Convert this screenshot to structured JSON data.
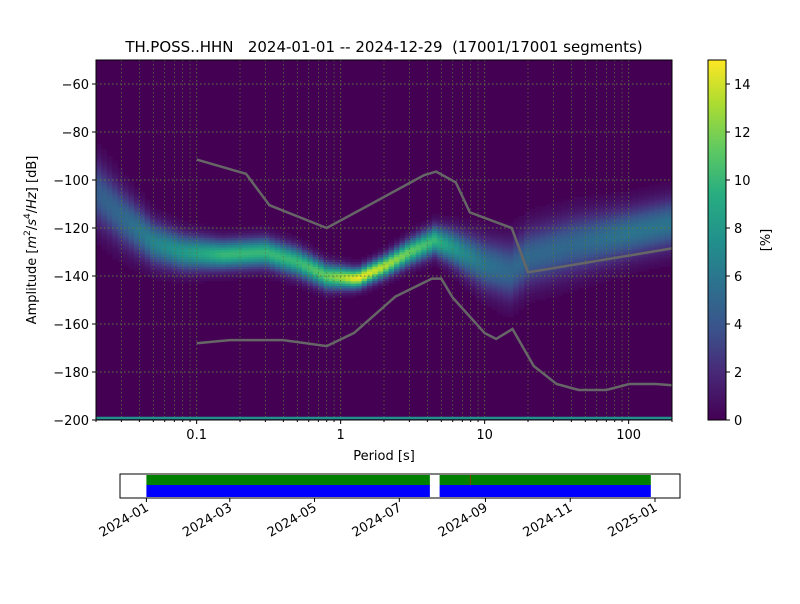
{
  "chart_data": {
    "type": "heatmap",
    "title": "TH.POSS..HHN   2024-01-01 -- 2024-12-29  (17001/17001 segments)",
    "xlabel": "Period [s]",
    "ylabel_parts": [
      "Amplitude [",
      "m",
      "2",
      "/",
      "s",
      "4",
      "/",
      "Hz",
      "] [dB]"
    ],
    "x_scale": "log",
    "xlim": [
      0.02,
      200
    ],
    "ylim": [
      -200,
      -50
    ],
    "x_ticks": [
      {
        "value": 0.1,
        "label": "0.1"
      },
      {
        "value": 1,
        "label": "1"
      },
      {
        "value": 10,
        "label": "10"
      },
      {
        "value": 100,
        "label": "100"
      }
    ],
    "y_ticks": [
      {
        "value": -60,
        "label": "−60"
      },
      {
        "value": -80,
        "label": "−80"
      },
      {
        "value": -100,
        "label": "−100"
      },
      {
        "value": -120,
        "label": "−120"
      },
      {
        "value": -140,
        "label": "−140"
      },
      {
        "value": -160,
        "label": "−160"
      },
      {
        "value": -180,
        "label": "−180"
      },
      {
        "value": -200,
        "label": "−200"
      }
    ],
    "grid": true,
    "colormap": "viridis",
    "colorbar": {
      "label": "[%]",
      "range": [
        0,
        15
      ],
      "ticks": [
        "0",
        "2",
        "4",
        "6",
        "8",
        "10",
        "12",
        "14"
      ]
    },
    "density_band": {
      "period": [
        0.02,
        0.03,
        0.05,
        0.08,
        0.15,
        0.3,
        0.5,
        0.8,
        1.3,
        2,
        3,
        4.5,
        6,
        10,
        15,
        20,
        40,
        100,
        200
      ],
      "center_db": [
        -105,
        -115,
        -126,
        -130,
        -131,
        -130,
        -134,
        -140,
        -141,
        -136,
        -130,
        -125,
        -128,
        -135,
        -138,
        -132,
        -127,
        -122,
        -118
      ],
      "spread_db": [
        9,
        8,
        6,
        5,
        4,
        4,
        4,
        3.5,
        2.7,
        3,
        3.5,
        4,
        5,
        7,
        8,
        8,
        8,
        7,
        7
      ]
    },
    "series": [
      {
        "name_hidden": "NHNM",
        "color": "#666666",
        "period": [
          0.1,
          0.22,
          0.32,
          0.8,
          3.8,
          4.6,
          6.3,
          7.9,
          15.4,
          20,
          200
        ],
        "db": [
          -91.5,
          -97.4,
          -110.5,
          -120,
          -98,
          -96.5,
          -101,
          -113.5,
          -120,
          -138.5,
          -128.5
        ]
      },
      {
        "name_hidden": "NLNM",
        "color": "#666666",
        "period": [
          0.1,
          0.17,
          0.4,
          0.8,
          1.24,
          2.4,
          4.3,
          5,
          6,
          10,
          12,
          15.6,
          21.9,
          31.6,
          45,
          70,
          101,
          154,
          200
        ],
        "db": [
          -168,
          -166.7,
          -166.7,
          -169.2,
          -163.7,
          -148.6,
          -141.1,
          -141.1,
          -149,
          -163.8,
          -166.2,
          -162.1,
          -177.5,
          -185,
          -187.5,
          -187.5,
          -185,
          -185,
          -185.5
        ]
      }
    ],
    "clip_line": {
      "db": -200,
      "color": "#21918c"
    },
    "timeline": {
      "range": [
        "2023-12-13",
        "2025-01-19"
      ],
      "ticks": [
        "2024-01",
        "2024-03",
        "2024-05",
        "2024-07",
        "2024-09",
        "2024-11",
        "2025-01"
      ],
      "coverage": [
        [
          "2024-01-01",
          "2024-07-23"
        ],
        [
          "2024-07-30",
          "2024-12-29"
        ]
      ],
      "coverage_colors": {
        "data": "#008000",
        "used": "#0000ff",
        "gap_marker": "#ff0000"
      },
      "gap_markers": [
        "2024-08-21"
      ]
    }
  }
}
